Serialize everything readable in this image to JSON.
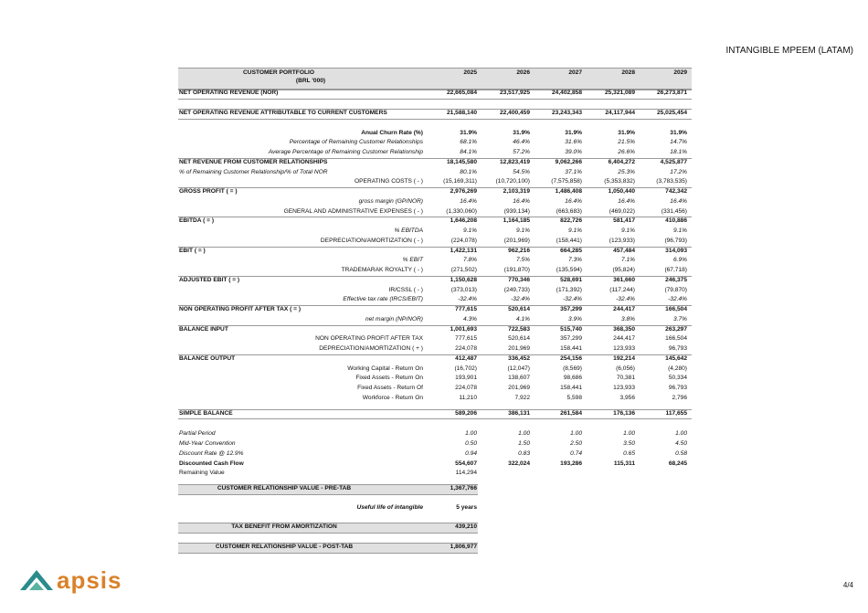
{
  "header": {
    "title": "INTANGIBLE MPEEM (LATAM)"
  },
  "table": {
    "title": "CUSTOMER PORTFOLIO",
    "unit": "(BRL '000)",
    "columns": [
      "2025",
      "2026",
      "2027",
      "2028",
      "2029"
    ],
    "rows": [
      {
        "label": "NET OPERATING REVENUE (NOR)",
        "values": [
          "22,665,084",
          "23,517,925",
          "24,402,858",
          "25,321,089",
          "26,273,871"
        ]
      },
      {
        "label": "NET OPERATING REVENUE ATTRIBUTABLE TO CURRENT CUSTOMERS",
        "values": [
          "21,588,140",
          "22,400,459",
          "23,243,343",
          "24,117,944",
          "25,025,454"
        ]
      },
      {
        "label": "Anual Churn Rate (%)",
        "values": [
          "31.9%",
          "31.9%",
          "31.9%",
          "31.9%",
          "31.9%"
        ]
      },
      {
        "label": "Percentage of Remaining Customer Relationships",
        "values": [
          "68.1%",
          "46.4%",
          "31.6%",
          "21.5%",
          "14.7%"
        ]
      },
      {
        "label": "Average Percentage of Remaining Customer Relationship",
        "values": [
          "84.1%",
          "57.2%",
          "39.0%",
          "26.6%",
          "18.1%"
        ]
      },
      {
        "label": "NET REVENUE FROM CUSTOMER RELATIONSHIPS",
        "values": [
          "18,145,580",
          "12,823,419",
          "9,062,266",
          "6,404,272",
          "4,525,877"
        ]
      },
      {
        "label": "% of Remaining Customer Relationship/% of Total NOR",
        "values": [
          "80.1%",
          "54.5%",
          "37.1%",
          "25.3%",
          "17.2%"
        ]
      },
      {
        "label": "OPERATING COSTS ( - )",
        "values": [
          "(15,169,311)",
          "(10,720,100)",
          "(7,575,858)",
          "(5,353,832)",
          "(3,783,535)"
        ]
      },
      {
        "label": "GROSS PROFIT ( = )",
        "values": [
          "2,976,269",
          "2,103,319",
          "1,486,408",
          "1,050,440",
          "742,342"
        ]
      },
      {
        "label": "gross margin (GP/NOR)",
        "values": [
          "16.4%",
          "16.4%",
          "16.4%",
          "16.4%",
          "16.4%"
        ]
      },
      {
        "label": "GENERAL AND ADMINISTRATIVE EXPENSES ( - )",
        "values": [
          "(1,330,060)",
          "(939,134)",
          "(663,683)",
          "(469,022)",
          "(331,456)"
        ]
      },
      {
        "label": "EBITDA ( = )",
        "values": [
          "1,646,208",
          "1,164,185",
          "822,726",
          "581,417",
          "410,886"
        ]
      },
      {
        "label": "% EBITDA",
        "values": [
          "9.1%",
          "9.1%",
          "9.1%",
          "9.1%",
          "9.1%"
        ]
      },
      {
        "label": "DEPRECIATION/AMORTIZATION ( - )",
        "values": [
          "(224,078)",
          "(201,969)",
          "(158,441)",
          "(123,933)",
          "(96,793)"
        ]
      },
      {
        "label": "EBIT ( = )",
        "values": [
          "1,422,131",
          "962,216",
          "664,285",
          "457,484",
          "314,093"
        ]
      },
      {
        "label": "% EBIT",
        "values": [
          "7.8%",
          "7.5%",
          "7.3%",
          "7.1%",
          "6.9%"
        ]
      },
      {
        "label": "TRADEMARAK ROYALTY ( - )",
        "values": [
          "(271,502)",
          "(191,870)",
          "(135,594)",
          "(95,824)",
          "(67,718)"
        ]
      },
      {
        "label": "ADJUSTED EBIT ( = )",
        "values": [
          "1,150,628",
          "770,346",
          "528,691",
          "361,660",
          "246,375"
        ]
      },
      {
        "label": "IR/CSSL ( - )",
        "values": [
          "(373,013)",
          "(249,733)",
          "(171,392)",
          "(117,244)",
          "(79,870)"
        ]
      },
      {
        "label": "Effective tax rate (IRCS/EBIT)",
        "values": [
          "-32.4%",
          "-32.4%",
          "-32.4%",
          "-32.4%",
          "-32.4%"
        ]
      },
      {
        "label": "NON OPERATING PROFIT AFTER TAX ( = )",
        "values": [
          "777,615",
          "520,614",
          "357,299",
          "244,417",
          "166,504"
        ]
      },
      {
        "label": "net margin (NP/NOR)",
        "values": [
          "4.3%",
          "4.1%",
          "3.9%",
          "3.8%",
          "3.7%"
        ]
      },
      {
        "label": "BALANCE INPUT",
        "values": [
          "1,001,693",
          "722,583",
          "515,740",
          "368,350",
          "263,297"
        ]
      },
      {
        "label": "NON OPERATING PROFIT AFTER TAX",
        "values": [
          "777,615",
          "520,614",
          "357,299",
          "244,417",
          "166,504"
        ]
      },
      {
        "label": "DEPRECIATION/AMORTIZATION ( + )",
        "values": [
          "224,078",
          "201,969",
          "158,441",
          "123,933",
          "96,793"
        ]
      },
      {
        "label": "BALANCE OUTPUT",
        "values": [
          "412,487",
          "336,452",
          "254,156",
          "192,214",
          "145,642"
        ]
      },
      {
        "label": "Working Capital - Return On",
        "values": [
          "(16,702)",
          "(12,047)",
          "(8,569)",
          "(6,056)",
          "(4,280)"
        ]
      },
      {
        "label": "Fixed Assets - Return On",
        "values": [
          "193,901",
          "138,607",
          "98,686",
          "70,381",
          "50,334"
        ]
      },
      {
        "label": "Fixed Assets - Return Of",
        "values": [
          "224,078",
          "201,969",
          "158,441",
          "123,933",
          "96,793"
        ]
      },
      {
        "label": "Workforce - Return On",
        "values": [
          "11,210",
          "7,922",
          "5,598",
          "3,956",
          "2,796"
        ]
      },
      {
        "label": "SIMPLE BALANCE",
        "values": [
          "589,206",
          "386,131",
          "261,584",
          "176,136",
          "117,655"
        ]
      },
      {
        "label": "Partial Period",
        "values": [
          "1.00",
          "1.00",
          "1.00",
          "1.00",
          "1.00"
        ]
      },
      {
        "label": "Mid-Year Convention",
        "values": [
          "0.50",
          "1.50",
          "2.50",
          "3.50",
          "4.50"
        ]
      },
      {
        "label": "Discount Rate @ 12.9%",
        "values": [
          "0.94",
          "0.83",
          "0.74",
          "0.65",
          "0.58"
        ]
      },
      {
        "label": "Discounted Cash Flow",
        "values": [
          "554,607",
          "322,024",
          "193,286",
          "115,311",
          "68,245"
        ]
      },
      {
        "label": "Remaining Value",
        "values": [
          "114,294"
        ]
      }
    ]
  },
  "summary": [
    {
      "label": "CUSTOMER RELATIONSHIP VALUE - PRE-TAB",
      "value": "1,367,766"
    },
    {
      "label": "Useful life of intangible",
      "value": "5 years"
    },
    {
      "label": "TAX BENEFIT FROM AMORTIZATION",
      "value": "439,210"
    },
    {
      "label": "CUSTOMER RELATIONSHIP VALUE - POST-TAB",
      "value": "1,806,977"
    }
  ],
  "footer": {
    "logo": "apsis",
    "page": "4/4"
  }
}
